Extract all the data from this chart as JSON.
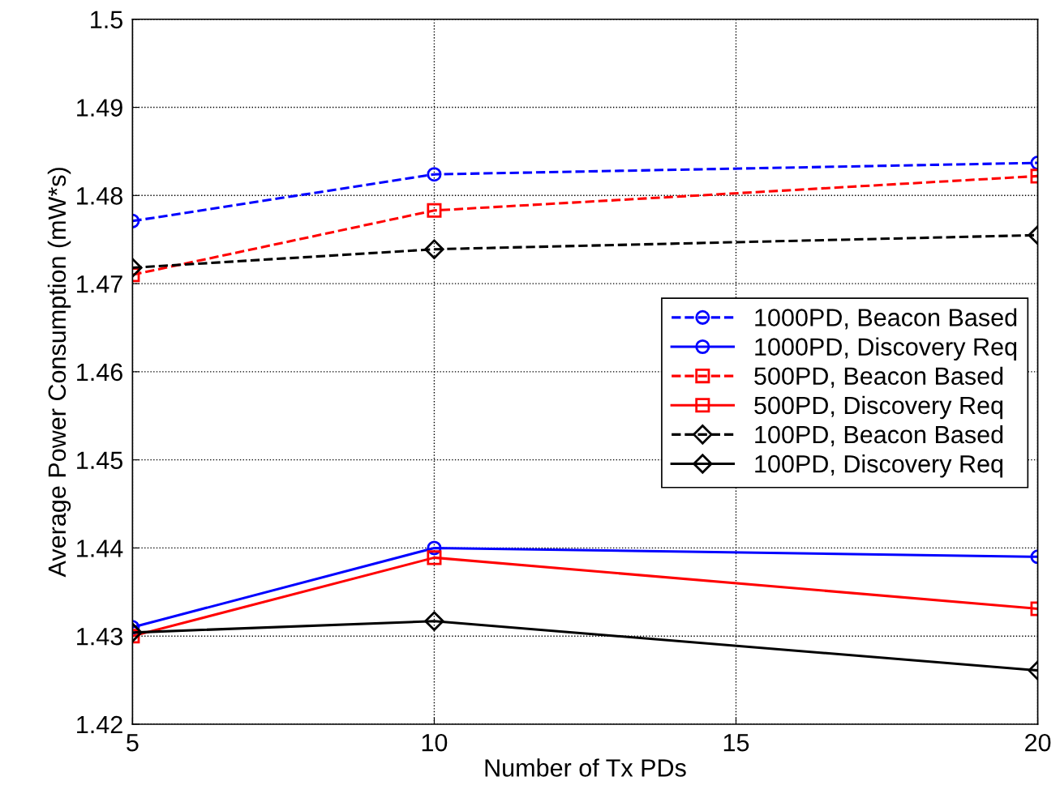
{
  "chart_data": {
    "type": "line",
    "xlabel": "Number of Tx PDs",
    "ylabel": "Average Power Consumption (mW*s)",
    "x": [
      5,
      10,
      20
    ],
    "xlim": [
      5,
      20
    ],
    "xticks": [
      5,
      10,
      15,
      20
    ],
    "ylim": [
      1.42,
      1.5
    ],
    "yticks": [
      1.42,
      1.43,
      1.44,
      1.45,
      1.46,
      1.47,
      1.48,
      1.49,
      1.5
    ],
    "grid": true,
    "legend": "right",
    "series": [
      {
        "name": "1000PD, Beacon Based",
        "color": "#0000ff",
        "marker": "circle",
        "line_style": "dashed",
        "values": [
          1.4771,
          1.4824,
          1.4837
        ]
      },
      {
        "name": "1000PD, Discovery Req",
        "color": "#0000ff",
        "marker": "circle",
        "line_style": "solid",
        "values": [
          1.431,
          1.44,
          1.439
        ]
      },
      {
        "name": "500PD, Beacon Based",
        "color": "#ff0000",
        "marker": "square",
        "line_style": "dashed",
        "values": [
          1.471,
          1.4783,
          1.4822
        ]
      },
      {
        "name": "500PD, Discovery Req",
        "color": "#ff0000",
        "marker": "square",
        "line_style": "solid",
        "values": [
          1.43,
          1.4389,
          1.4331
        ]
      },
      {
        "name": "100PD, Beacon Based",
        "color": "#000000",
        "marker": "diamond",
        "line_style": "dashed",
        "values": [
          1.4718,
          1.4739,
          1.4755
        ]
      },
      {
        "name": "100PD, Discovery Req",
        "color": "#000000",
        "marker": "diamond",
        "line_style": "solid",
        "values": [
          1.4304,
          1.4317,
          1.4261
        ]
      }
    ]
  }
}
